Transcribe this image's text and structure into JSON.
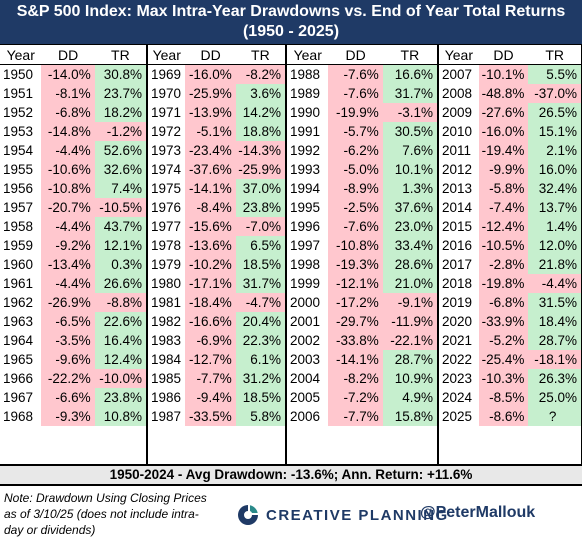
{
  "title_line1": "S&P 500 Index: Max Intra-Year Drawdowns vs. End of Year Total Returns",
  "title_line2": "(1950 - 2025)",
  "columns": [
    "Year",
    "DD",
    "TR"
  ],
  "colors": {
    "positive": "#c6efce",
    "negative": "#ffc7ce",
    "title_bg": "#1f3a66"
  },
  "chart_data": {
    "type": "table",
    "title": "S&P 500 Index: Max Intra-Year Drawdowns vs. End of Year Total Returns (1950 - 2025)",
    "columns": [
      "Year",
      "DD",
      "TR"
    ],
    "rows": [
      [
        "1950",
        "-14.0%",
        "30.8%"
      ],
      [
        "1951",
        "-8.1%",
        "23.7%"
      ],
      [
        "1952",
        "-6.8%",
        "18.2%"
      ],
      [
        "1953",
        "-14.8%",
        "-1.2%"
      ],
      [
        "1954",
        "-4.4%",
        "52.6%"
      ],
      [
        "1955",
        "-10.6%",
        "32.6%"
      ],
      [
        "1956",
        "-10.8%",
        "7.4%"
      ],
      [
        "1957",
        "-20.7%",
        "-10.5%"
      ],
      [
        "1958",
        "-4.4%",
        "43.7%"
      ],
      [
        "1959",
        "-9.2%",
        "12.1%"
      ],
      [
        "1960",
        "-13.4%",
        "0.3%"
      ],
      [
        "1961",
        "-4.4%",
        "26.6%"
      ],
      [
        "1962",
        "-26.9%",
        "-8.8%"
      ],
      [
        "1963",
        "-6.5%",
        "22.6%"
      ],
      [
        "1964",
        "-3.5%",
        "16.4%"
      ],
      [
        "1965",
        "-9.6%",
        "12.4%"
      ],
      [
        "1966",
        "-22.2%",
        "-10.0%"
      ],
      [
        "1967",
        "-6.6%",
        "23.8%"
      ],
      [
        "1968",
        "-9.3%",
        "10.8%"
      ],
      [
        "1969",
        "-16.0%",
        "-8.2%"
      ],
      [
        "1970",
        "-25.9%",
        "3.6%"
      ],
      [
        "1971",
        "-13.9%",
        "14.2%"
      ],
      [
        "1972",
        "-5.1%",
        "18.8%"
      ],
      [
        "1973",
        "-23.4%",
        "-14.3%"
      ],
      [
        "1974",
        "-37.6%",
        "-25.9%"
      ],
      [
        "1975",
        "-14.1%",
        "37.0%"
      ],
      [
        "1976",
        "-8.4%",
        "23.8%"
      ],
      [
        "1977",
        "-15.6%",
        "-7.0%"
      ],
      [
        "1978",
        "-13.6%",
        "6.5%"
      ],
      [
        "1979",
        "-10.2%",
        "18.5%"
      ],
      [
        "1980",
        "-17.1%",
        "31.7%"
      ],
      [
        "1981",
        "-18.4%",
        "-4.7%"
      ],
      [
        "1982",
        "-16.6%",
        "20.4%"
      ],
      [
        "1983",
        "-6.9%",
        "22.3%"
      ],
      [
        "1984",
        "-12.7%",
        "6.1%"
      ],
      [
        "1985",
        "-7.7%",
        "31.2%"
      ],
      [
        "1986",
        "-9.4%",
        "18.5%"
      ],
      [
        "1987",
        "-33.5%",
        "5.8%"
      ],
      [
        "1988",
        "-7.6%",
        "16.6%"
      ],
      [
        "1989",
        "-7.6%",
        "31.7%"
      ],
      [
        "1990",
        "-19.9%",
        "-3.1%"
      ],
      [
        "1991",
        "-5.7%",
        "30.5%"
      ],
      [
        "1992",
        "-6.2%",
        "7.6%"
      ],
      [
        "1993",
        "-5.0%",
        "10.1%"
      ],
      [
        "1994",
        "-8.9%",
        "1.3%"
      ],
      [
        "1995",
        "-2.5%",
        "37.6%"
      ],
      [
        "1996",
        "-7.6%",
        "23.0%"
      ],
      [
        "1997",
        "-10.8%",
        "33.4%"
      ],
      [
        "1998",
        "-19.3%",
        "28.6%"
      ],
      [
        "1999",
        "-12.1%",
        "21.0%"
      ],
      [
        "2000",
        "-17.2%",
        "-9.1%"
      ],
      [
        "2001",
        "-29.7%",
        "-11.9%"
      ],
      [
        "2002",
        "-33.8%",
        "-22.1%"
      ],
      [
        "2003",
        "-14.1%",
        "28.7%"
      ],
      [
        "2004",
        "-8.2%",
        "10.9%"
      ],
      [
        "2005",
        "-7.2%",
        "4.9%"
      ],
      [
        "2006",
        "-7.7%",
        "15.8%"
      ],
      [
        "2007",
        "-10.1%",
        "5.5%"
      ],
      [
        "2008",
        "-48.8%",
        "-37.0%"
      ],
      [
        "2009",
        "-27.6%",
        "26.5%"
      ],
      [
        "2010",
        "-16.0%",
        "15.1%"
      ],
      [
        "2011",
        "-19.4%",
        "2.1%"
      ],
      [
        "2012",
        "-9.9%",
        "16.0%"
      ],
      [
        "2013",
        "-5.8%",
        "32.4%"
      ],
      [
        "2014",
        "-7.4%",
        "13.7%"
      ],
      [
        "2015",
        "-12.4%",
        "1.4%"
      ],
      [
        "2016",
        "-10.5%",
        "12.0%"
      ],
      [
        "2017",
        "-2.8%",
        "21.8%"
      ],
      [
        "2018",
        "-19.8%",
        "-4.4%"
      ],
      [
        "2019",
        "-6.8%",
        "31.5%"
      ],
      [
        "2020",
        "-33.9%",
        "18.4%"
      ],
      [
        "2021",
        "-5.2%",
        "28.7%"
      ],
      [
        "2022",
        "-25.4%",
        "-18.1%"
      ],
      [
        "2023",
        "-10.3%",
        "26.3%"
      ],
      [
        "2024",
        "-8.5%",
        "25.0%"
      ],
      [
        "2025",
        "-8.6%",
        "?"
      ]
    ]
  },
  "summary": "1950-2024 - Avg Drawdown: -13.6%; Ann. Return: +11.6%",
  "note": "Note: Drawdown Using Closing Prices as of 3/10/25 (does not include intra-day or dividends)",
  "logo_text": "CREATIVE PLANNING",
  "logo_icon": "creative-planning-logo-icon",
  "handle": "@PeterMallouk"
}
